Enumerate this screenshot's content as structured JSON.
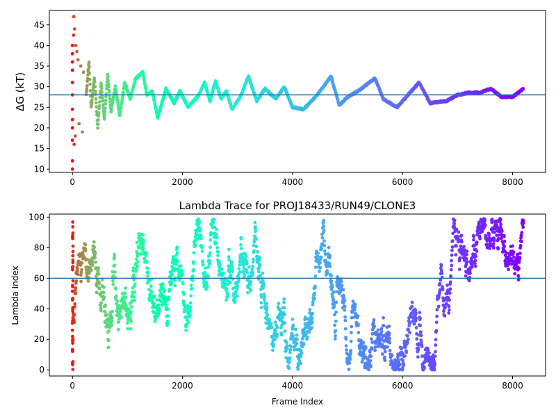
{
  "chart_data": [
    {
      "type": "scatter",
      "title": "",
      "xlabel": "",
      "ylabel": "ΔG (kT)",
      "xlim": [
        -420,
        8600
      ],
      "ylim": [
        9.2,
        48.5
      ],
      "xticks": [
        0,
        2000,
        4000,
        6000,
        8000
      ],
      "xtick_labels": [
        "0",
        "2000",
        "4000",
        "6000",
        "8000"
      ],
      "yticks": [
        10,
        15,
        20,
        25,
        30,
        35,
        40,
        45
      ],
      "ytick_labels": [
        "10",
        "15",
        "20",
        "25",
        "30",
        "35",
        "40",
        "45"
      ],
      "grid": false,
      "reference_line": 28.0,
      "reference_color": "#1f77b4",
      "colormap": "rainbow (early frames red, late frames violet)",
      "x_range": [
        0,
        8200
      ],
      "early_points": [
        {
          "x": 0,
          "y": 10.0
        },
        {
          "x": 0,
          "y": 12.0
        },
        {
          "x": 0,
          "y": 17.0
        },
        {
          "x": 0,
          "y": 20.0
        },
        {
          "x": 0,
          "y": 22.0
        },
        {
          "x": 0,
          "y": 24.5
        },
        {
          "x": 0,
          "y": 28.0
        },
        {
          "x": 0,
          "y": 31.0
        },
        {
          "x": 0,
          "y": 34.0
        },
        {
          "x": 0,
          "y": 36.0
        },
        {
          "x": 0,
          "y": 38.0
        },
        {
          "x": 0,
          "y": 40.0
        },
        {
          "x": 20,
          "y": 42.5
        },
        {
          "x": 25,
          "y": 47.0
        },
        {
          "x": 40,
          "y": 44.0
        },
        {
          "x": 30,
          "y": 16.0
        },
        {
          "x": 50,
          "y": 18.0
        },
        {
          "x": 60,
          "y": 40.0
        },
        {
          "x": 80,
          "y": 38.5
        },
        {
          "x": 100,
          "y": 36.5
        },
        {
          "x": 120,
          "y": 21.0
        },
        {
          "x": 150,
          "y": 35.0
        },
        {
          "x": 180,
          "y": 19.0
        },
        {
          "x": 200,
          "y": 33.5
        }
      ],
      "trace_keypoints": [
        {
          "x": 250,
          "y": 28.0
        },
        {
          "x": 300,
          "y": 36.0
        },
        {
          "x": 340,
          "y": 25.0
        },
        {
          "x": 400,
          "y": 32.0
        },
        {
          "x": 460,
          "y": 20.0
        },
        {
          "x": 520,
          "y": 31.0
        },
        {
          "x": 580,
          "y": 22.0
        },
        {
          "x": 640,
          "y": 33.0
        },
        {
          "x": 700,
          "y": 24.0
        },
        {
          "x": 780,
          "y": 30.0
        },
        {
          "x": 860,
          "y": 23.0
        },
        {
          "x": 950,
          "y": 31.0
        },
        {
          "x": 1050,
          "y": 27.0
        },
        {
          "x": 1150,
          "y": 32.0
        },
        {
          "x": 1280,
          "y": 33.5
        },
        {
          "x": 1350,
          "y": 28.0
        },
        {
          "x": 1450,
          "y": 29.0
        },
        {
          "x": 1550,
          "y": 22.5
        },
        {
          "x": 1700,
          "y": 29.5
        },
        {
          "x": 1850,
          "y": 26.0
        },
        {
          "x": 1950,
          "y": 29.0
        },
        {
          "x": 2100,
          "y": 25.0
        },
        {
          "x": 2300,
          "y": 28.0
        },
        {
          "x": 2400,
          "y": 31.0
        },
        {
          "x": 2500,
          "y": 26.5
        },
        {
          "x": 2600,
          "y": 31.5
        },
        {
          "x": 2700,
          "y": 27.0
        },
        {
          "x": 2800,
          "y": 29.0
        },
        {
          "x": 2900,
          "y": 24.5
        },
        {
          "x": 3050,
          "y": 27.5
        },
        {
          "x": 3200,
          "y": 32.5
        },
        {
          "x": 3350,
          "y": 26.5
        },
        {
          "x": 3500,
          "y": 29.5
        },
        {
          "x": 3700,
          "y": 27.0
        },
        {
          "x": 3850,
          "y": 30.0
        },
        {
          "x": 4000,
          "y": 25.0
        },
        {
          "x": 4200,
          "y": 24.5
        },
        {
          "x": 4450,
          "y": 28.0
        },
        {
          "x": 4700,
          "y": 32.5
        },
        {
          "x": 4850,
          "y": 25.5
        },
        {
          "x": 5000,
          "y": 27.5
        },
        {
          "x": 5200,
          "y": 29.0
        },
        {
          "x": 5400,
          "y": 31.0
        },
        {
          "x": 5500,
          "y": 32.0
        },
        {
          "x": 5650,
          "y": 27.0
        },
        {
          "x": 5900,
          "y": 25.0
        },
        {
          "x": 6100,
          "y": 28.0
        },
        {
          "x": 6300,
          "y": 31.0
        },
        {
          "x": 6500,
          "y": 26.0
        },
        {
          "x": 6800,
          "y": 26.5
        },
        {
          "x": 7000,
          "y": 28.0
        },
        {
          "x": 7200,
          "y": 28.5
        },
        {
          "x": 7400,
          "y": 28.5
        },
        {
          "x": 7600,
          "y": 29.5
        },
        {
          "x": 7800,
          "y": 27.5
        },
        {
          "x": 8000,
          "y": 27.5
        },
        {
          "x": 8200,
          "y": 29.5
        }
      ]
    },
    {
      "type": "scatter",
      "title": "Lambda Trace for PROJ18433/RUN49/CLONE3",
      "xlabel": "Frame Index",
      "ylabel": "Lambda Index",
      "xlim": [
        -420,
        8600
      ],
      "ylim": [
        -4,
        102
      ],
      "xticks": [
        0,
        2000,
        4000,
        6000,
        8000
      ],
      "xtick_labels": [
        "0",
        "2000",
        "4000",
        "6000",
        "8000"
      ],
      "yticks": [
        0,
        20,
        40,
        60,
        80,
        100
      ],
      "ytick_labels": [
        "0",
        "20",
        "40",
        "60",
        "80",
        "100"
      ],
      "grid": false,
      "reference_line": 60,
      "reference_color": "#1f77b4",
      "colormap": "rainbow (early frames red, late frames violet)",
      "x_range": [
        0,
        8200
      ],
      "value_range": [
        0,
        99
      ],
      "description": "Lambda index random-walks between 0 and 99 for every frame index 0-8200"
    }
  ]
}
